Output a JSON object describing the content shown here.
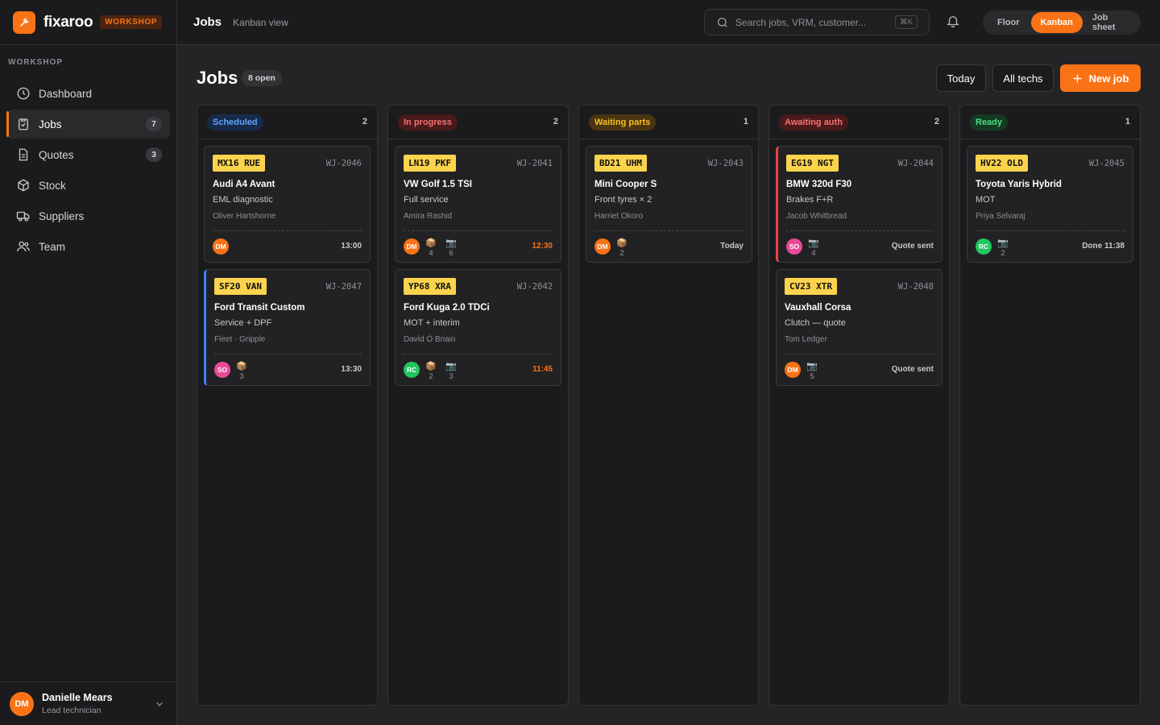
{
  "brand": {
    "name": "fixaroo",
    "tag": "WORKSHOP"
  },
  "sidebar": {
    "section": "WORKSHOP",
    "items": [
      {
        "label": "Dashboard",
        "icon": "clock-icon",
        "badge": ""
      },
      {
        "label": "Jobs",
        "icon": "clipboard-icon",
        "badge": "7"
      },
      {
        "label": "Quotes",
        "icon": "document-icon",
        "badge": "3"
      },
      {
        "label": "Stock",
        "icon": "box-icon",
        "badge": ""
      },
      {
        "label": "Suppliers",
        "icon": "truck-icon",
        "badge": ""
      },
      {
        "label": "Team",
        "icon": "users-icon",
        "badge": ""
      }
    ]
  },
  "user": {
    "initials": "DM",
    "name": "Danielle Mears",
    "role": "Lead technician"
  },
  "topbar": {
    "title": "Jobs",
    "subtitle": "Kanban view",
    "search_placeholder": "Search jobs, VRM, customer...",
    "shortcut": "⌘K",
    "views": [
      "Floor",
      "Kanban",
      "Job sheet"
    ],
    "active_view": "Kanban"
  },
  "main": {
    "title": "Jobs",
    "open_badge": "8 open",
    "buttons": {
      "today": "Today",
      "techs": "All techs",
      "new_job": "New job"
    }
  },
  "colors": {
    "accent": "#f97316",
    "plate": "#fcd34d",
    "scheduled": "#60a5fa",
    "in_progress": "#f87171",
    "waiting": "#fbbf24",
    "awaiting": "#f87171",
    "ready": "#4ade80"
  },
  "columns": [
    {
      "name": "Scheduled",
      "count": "2",
      "cards": [
        {
          "plate": "MX16 RUE",
          "id": "WJ-2046",
          "car": "Audi A4 Avant",
          "work": "EML diagnostic",
          "customer": "Oliver Hartshorne",
          "tech": "DM",
          "parts": "",
          "photos": "",
          "status": "13:00"
        },
        {
          "plate": "SF20 VAN",
          "id": "WJ-2047",
          "car": "Ford Transit Custom",
          "work": "Service + DPF",
          "customer": "Fleet · Gripple",
          "tech": "SO",
          "parts": "3",
          "photos": "",
          "status": "13:30"
        }
      ]
    },
    {
      "name": "In progress",
      "count": "2",
      "cards": [
        {
          "plate": "LN19 PKF",
          "id": "WJ-2041",
          "car": "VW Golf 1.5 TSI",
          "work": "Full service",
          "customer": "Amira Rashid",
          "tech": "DM",
          "parts": "4",
          "photos": "6",
          "status": "12:30"
        },
        {
          "plate": "YP68 XRA",
          "id": "WJ-2042",
          "car": "Ford Kuga 2.0 TDCi",
          "work": "MOT + interim",
          "customer": "David Ó Briain",
          "tech": "RC",
          "parts": "2",
          "photos": "3",
          "status": "11:45"
        }
      ]
    },
    {
      "name": "Waiting parts",
      "count": "1",
      "cards": [
        {
          "plate": "BD21 UHM",
          "id": "WJ-2043",
          "car": "Mini Cooper S",
          "work": "Front tyres × 2",
          "customer": "Harriet Okoro",
          "tech": "DM",
          "parts": "2",
          "photos": "",
          "status": "Today"
        }
      ]
    },
    {
      "name": "Awaiting auth",
      "count": "2",
      "cards": [
        {
          "plate": "EG19 NGT",
          "id": "WJ-2044",
          "car": "BMW 320d F30",
          "work": "Brakes F+R",
          "customer": "Jacob Whitbread",
          "tech": "SO",
          "parts": "",
          "photos": "4",
          "status": "Quote sent"
        },
        {
          "plate": "CV23 XTR",
          "id": "WJ-2048",
          "car": "Vauxhall Corsa",
          "work": "Clutch — quote",
          "customer": "Tom Ledger",
          "tech": "DM",
          "parts": "",
          "photos": "5",
          "status": "Quote sent"
        }
      ]
    },
    {
      "name": "Ready",
      "count": "1",
      "cards": [
        {
          "plate": "HV22 OLD",
          "id": "WJ-2045",
          "car": "Toyota Yaris Hybrid",
          "work": "MOT",
          "customer": "Priya Selvaraj",
          "tech": "RC",
          "parts": "",
          "photos": "2",
          "status": "Done 11:38"
        }
      ]
    }
  ]
}
